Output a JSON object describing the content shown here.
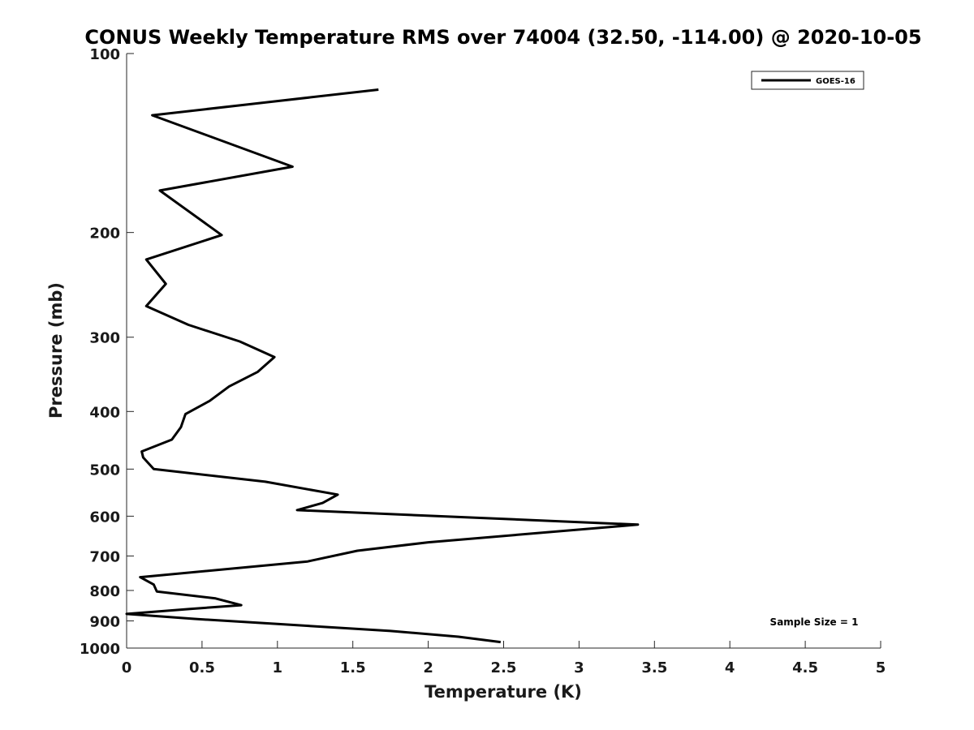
{
  "chart_data": {
    "type": "line",
    "title": "CONUS Weekly Temperature RMS over 74004 (32.50, -114.00) @ 2020-10-05",
    "xlabel": "Temperature (K)",
    "ylabel": "Pressure (mb)",
    "xlim": [
      0,
      5
    ],
    "ylim": [
      100,
      1000
    ],
    "y_scale": "log",
    "y_reversed": true,
    "xticks": [
      "0",
      "0.5",
      "1",
      "1.5",
      "2",
      "2.5",
      "3",
      "3.5",
      "4",
      "4.5",
      "5"
    ],
    "yticks": [
      "100",
      "200",
      "300",
      "400",
      "500",
      "600",
      "700",
      "800",
      "900",
      "1000"
    ],
    "grid": false,
    "legend_position": "top-right",
    "series": [
      {
        "name": "GOES-16",
        "color": "#000000",
        "x": [
          1.67,
          0.17,
          1.1,
          0.22,
          0.63,
          0.13,
          0.26,
          0.13,
          0.41,
          0.75,
          0.98,
          0.87,
          0.68,
          0.55,
          0.39,
          0.36,
          0.3,
          0.1,
          0.11,
          0.18,
          0.92,
          1.4,
          1.3,
          1.13,
          3.39,
          2.0,
          1.53,
          1.2,
          0.09,
          0.18,
          0.2,
          0.59,
          0.76,
          0.43,
          0.0,
          0.45,
          1.0,
          1.75,
          2.2,
          2.48
        ],
        "y": [
          115,
          127,
          155,
          170,
          202,
          222,
          244,
          266,
          286,
          305,
          324,
          343,
          363,
          384,
          404,
          425,
          446,
          467,
          478,
          500,
          525,
          552,
          570,
          586,
          620,
          664,
          686,
          715,
          760,
          782,
          803,
          825,
          847,
          859,
          876,
          893,
          911,
          936,
          957,
          977
        ]
      }
    ],
    "annotation": "Sample Size = 1"
  }
}
